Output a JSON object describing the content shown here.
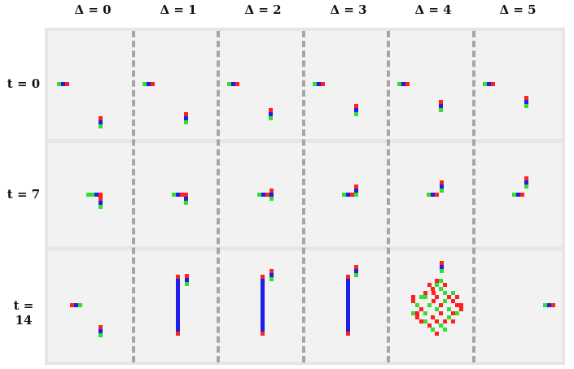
{
  "column_labels": [
    "Δ = 0",
    "Δ = 1",
    "Δ = 2",
    "Δ = 3",
    "Δ = 4",
    "Δ = 5"
  ],
  "row_labels": [
    "t = 0",
    "t = 7",
    "t = 14"
  ],
  "colors": {
    "red": "#ff2020",
    "blue": "#1f1fe6",
    "green": "#33dd33",
    "panel_background": "#f2f2f2",
    "frame": "#e6e6e6",
    "separator": "#a6a6a6"
  }
}
